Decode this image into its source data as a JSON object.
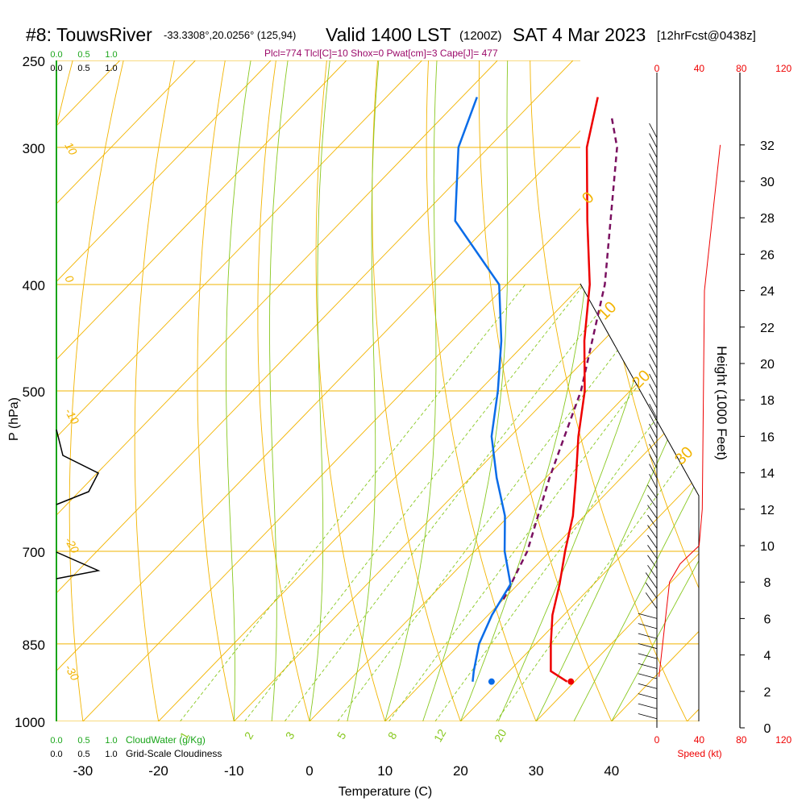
{
  "header": {
    "station": "#8: TouwsRiver",
    "coords": "-33.3308°,20.0256° (125,94)",
    "valid": "Valid 1400 LST",
    "zulu": "(1200Z)",
    "date": "SAT 4 Mar 2023",
    "forecast": "[12hrFcst@0438z]",
    "params": "Plcl=774 Tlcl[C]=10 Shox=0 Pwat[cm]=3 Cape[J]= 477"
  },
  "colors": {
    "temperature": "#ee0000",
    "dewpoint": "#0a6ce8",
    "parcel": "#7a1060",
    "isobar": "#f2b400",
    "dry_adiabat": "#f2b400",
    "moist_adiabat": "#88c820",
    "mixing_ratio": "#88c820",
    "cloud": "#1aa51a",
    "wind_speed": "#ee0000"
  },
  "chart_data": {
    "type": "skew-t log-p sounding",
    "xlabel": "Temperature (C)",
    "ylabel": "P (hPa)",
    "y2label": "Height (1000 Feet)",
    "x_ticks": [
      -30,
      -20,
      -10,
      0,
      10,
      20,
      30,
      40
    ],
    "p_ticks": [
      250,
      300,
      400,
      500,
      700,
      850,
      1000
    ],
    "p_range": [
      1000,
      250
    ],
    "height_ticks": [
      0,
      2,
      4,
      6,
      8,
      10,
      12,
      14,
      16,
      18,
      20,
      22,
      24,
      26,
      28,
      30,
      32
    ],
    "surface_temperature_c": 29.5,
    "surface_dewpoint_c": 19.0,
    "temperature_profile": [
      {
        "p": 920,
        "t": 29
      },
      {
        "p": 900,
        "t": 25.5
      },
      {
        "p": 850,
        "t": 22
      },
      {
        "p": 800,
        "t": 18.5
      },
      {
        "p": 750,
        "t": 15.5
      },
      {
        "p": 700,
        "t": 12
      },
      {
        "p": 650,
        "t": 8.5
      },
      {
        "p": 600,
        "t": 4
      },
      {
        "p": 550,
        "t": -1
      },
      {
        "p": 500,
        "t": -6
      },
      {
        "p": 450,
        "t": -12.5
      },
      {
        "p": 400,
        "t": -19
      },
      {
        "p": 350,
        "t": -27.5
      },
      {
        "p": 300,
        "t": -37
      },
      {
        "p": 270,
        "t": -42
      }
    ],
    "dewpoint_profile": [
      {
        "p": 920,
        "t": 16.5
      },
      {
        "p": 900,
        "t": 15.3
      },
      {
        "p": 850,
        "t": 12.5
      },
      {
        "p": 800,
        "t": 10.5
      },
      {
        "p": 750,
        "t": 9
      },
      {
        "p": 700,
        "t": 4
      },
      {
        "p": 650,
        "t": -0.5
      },
      {
        "p": 600,
        "t": -6.5
      },
      {
        "p": 550,
        "t": -12.5
      },
      {
        "p": 500,
        "t": -17.5
      },
      {
        "p": 450,
        "t": -23.5
      },
      {
        "p": 400,
        "t": -31
      },
      {
        "p": 350,
        "t": -45
      },
      {
        "p": 300,
        "t": -54
      },
      {
        "p": 270,
        "t": -58
      }
    ],
    "parcel_profile": [
      {
        "p": 774,
        "t": 10
      },
      {
        "p": 700,
        "t": 7
      },
      {
        "p": 600,
        "t": 0.5
      },
      {
        "p": 500,
        "t": -6.5
      },
      {
        "p": 400,
        "t": -17
      },
      {
        "p": 300,
        "t": -33
      },
      {
        "p": 280,
        "t": -38
      }
    ],
    "wind_speed_profile_kt": [
      {
        "h": 2.8,
        "s": 2
      },
      {
        "h": 8,
        "s": 12
      },
      {
        "h": 9,
        "s": 22
      },
      {
        "h": 10,
        "s": 40
      },
      {
        "h": 12,
        "s": 43
      },
      {
        "h": 24,
        "s": 45
      },
      {
        "h": 32,
        "s": 60
      }
    ],
    "wind_speed_ticks": [
      0,
      40,
      80,
      120
    ],
    "wind_speed_label": "Speed (kt)",
    "cloud_ticks": [
      0.0,
      0.5,
      1.0
    ],
    "cloud_labels": {
      "cloud_water": "CloudWater (g/Kg)",
      "cloudiness": "Grid-Scale Cloudiness"
    },
    "mixing_ratio_labels": [
      "1",
      "2",
      "3",
      "5",
      "8",
      "12",
      "20"
    ],
    "dry_adiabat_labels": [
      "10",
      "0",
      "-10",
      "-20",
      "-30"
    ],
    "moist_adiabat_labels": [
      "0",
      "10",
      "20",
      "30"
    ]
  }
}
